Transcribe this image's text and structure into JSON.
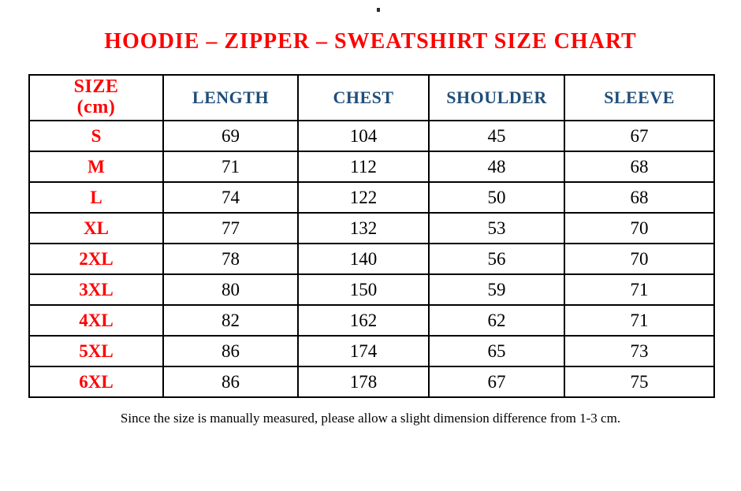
{
  "page": {
    "background": "#ffffff",
    "stray_dot": "."
  },
  "title": {
    "text": "HOODIE – ZIPPER – SWEATSHIRT SIZE CHART",
    "color": "#ff0000"
  },
  "table": {
    "columns": [
      {
        "label": "SIZE (cm)",
        "lines": [
          "SIZE",
          "(cm)"
        ],
        "color": "#ff0000"
      },
      {
        "label": "LENGTH",
        "color": "#1f4e79"
      },
      {
        "label": "CHEST",
        "color": "#1f4e79"
      },
      {
        "label": "SHOULDER",
        "color": "#1f4e79"
      },
      {
        "label": "SLEEVE",
        "color": "#1f4e79"
      }
    ],
    "rows": [
      {
        "size": "S",
        "length": 69,
        "chest": 104,
        "shoulder": 45,
        "sleeve": 67
      },
      {
        "size": "M",
        "length": 71,
        "chest": 112,
        "shoulder": 48,
        "sleeve": 68
      },
      {
        "size": "L",
        "length": 74,
        "chest": 122,
        "shoulder": 50,
        "sleeve": 68
      },
      {
        "size": "XL",
        "length": 77,
        "chest": 132,
        "shoulder": 53,
        "sleeve": 70
      },
      {
        "size": "2XL",
        "length": 78,
        "chest": 140,
        "shoulder": 56,
        "sleeve": 70
      },
      {
        "size": "3XL",
        "length": 80,
        "chest": 150,
        "shoulder": 59,
        "sleeve": 71
      },
      {
        "size": "4XL",
        "length": 82,
        "chest": 162,
        "shoulder": 62,
        "sleeve": 71
      },
      {
        "size": "5XL",
        "length": 86,
        "chest": 174,
        "shoulder": 65,
        "sleeve": 73
      },
      {
        "size": "6XL",
        "length": 86,
        "chest": 178,
        "shoulder": 67,
        "sleeve": 75
      }
    ]
  },
  "footer": {
    "note": "Since the size is manually measured, please allow a slight dimension difference from 1-3 cm."
  },
  "colors": {
    "accent_red": "#ff0000",
    "header_blue": "#1f4e79",
    "text_black": "#000000",
    "border_black": "#000000"
  }
}
